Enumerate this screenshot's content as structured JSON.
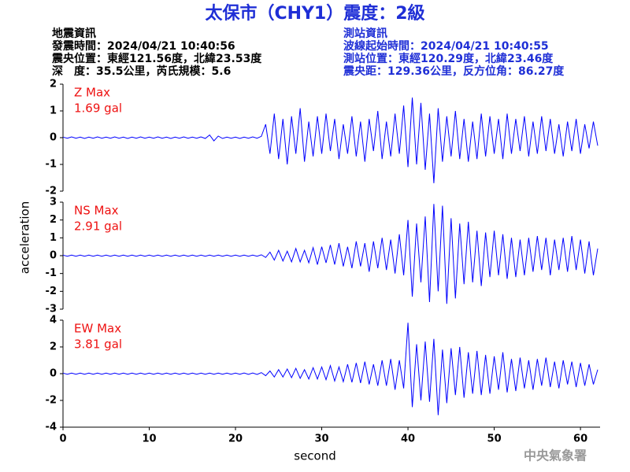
{
  "header": {
    "title": "太保市（CHY1）震度：2級",
    "left": [
      "地震資訊",
      "發震時間：2024/04/21 10:40:56",
      "震央位置：東經121.56度，北緯23.53度",
      "深　度：35.5公里，芮氏規模：5.6"
    ],
    "right": [
      "測站資訊",
      "波線起始時間：2024/04/21 10:40:55",
      "測站位置：東經120.29度，北緯23.46度",
      "震央距：129.36公里，反方位角：86.27度"
    ]
  },
  "ylabel": "acceleration",
  "xlabel": "second",
  "credit": "中央氣象署",
  "chart_data": [
    {
      "type": "line",
      "annotation": [
        "Z Max",
        "1.69 gal"
      ],
      "annotation_color": "#ee1111",
      "xlim": [
        0,
        62
      ],
      "ylim": [
        -2,
        2
      ],
      "yticks": [
        -2,
        -1,
        0,
        1,
        2
      ],
      "x": [
        0,
        0.5,
        1,
        1.5,
        2,
        2.5,
        3,
        3.5,
        4,
        4.5,
        5,
        5.5,
        6,
        6.5,
        7,
        7.5,
        8,
        8.5,
        9,
        9.5,
        10,
        10.5,
        11,
        11.5,
        12,
        12.5,
        13,
        13.5,
        14,
        14.5,
        15,
        15.5,
        16,
        16.5,
        17,
        17.5,
        18,
        18.5,
        19,
        19.5,
        20,
        20.5,
        21,
        21.5,
        22,
        22.5,
        23,
        23.5,
        24,
        24.5,
        25,
        25.5,
        26,
        26.5,
        27,
        27.5,
        28,
        28.5,
        29,
        29.5,
        30,
        30.5,
        31,
        31.5,
        32,
        32.5,
        33,
        33.5,
        34,
        34.5,
        35,
        35.5,
        36,
        36.5,
        37,
        37.5,
        38,
        38.5,
        39,
        39.5,
        40,
        40.5,
        41,
        41.5,
        42,
        42.5,
        43,
        43.5,
        44,
        44.5,
        45,
        45.5,
        46,
        46.5,
        47,
        47.5,
        48,
        48.5,
        49,
        49.5,
        50,
        50.5,
        51,
        51.5,
        52,
        52.5,
        53,
        53.5,
        54,
        54.5,
        55,
        55.5,
        56,
        56.5,
        57,
        57.5,
        58,
        58.5,
        59,
        59.5,
        60,
        60.5,
        61,
        61.5,
        62
      ],
      "series": [
        {
          "color": "#0000ff",
          "values": [
            0.02,
            -0.02,
            0.03,
            -0.02,
            0.02,
            -0.03,
            0.02,
            -0.02,
            0.03,
            -0.02,
            0.02,
            -0.02,
            0.03,
            -0.02,
            0.02,
            -0.03,
            0.02,
            -0.02,
            0.03,
            -0.02,
            0.02,
            -0.02,
            0.03,
            -0.02,
            0.02,
            -0.03,
            0.02,
            -0.02,
            0.03,
            -0.02,
            0.02,
            -0.02,
            0.03,
            -0.03,
            0.1,
            -0.12,
            0.06,
            -0.03,
            0.02,
            -0.02,
            0.02,
            -0.03,
            0.02,
            -0.02,
            0.03,
            -0.02,
            0.05,
            0.5,
            -0.6,
            0.9,
            -0.8,
            0.7,
            -1.0,
            0.8,
            -0.6,
            1.1,
            -0.9,
            0.6,
            -0.7,
            0.8,
            -0.6,
            0.9,
            -0.5,
            0.7,
            -0.8,
            0.5,
            -0.6,
            0.8,
            -0.7,
            0.6,
            -0.9,
            0.7,
            -0.5,
            1.0,
            -0.8,
            0.6,
            -0.7,
            0.9,
            -0.6,
            1.2,
            -1.1,
            1.5,
            -1.0,
            1.3,
            -1.2,
            0.9,
            -1.7,
            1.1,
            -0.9,
            0.8,
            -0.7,
            1.0,
            -0.8,
            0.7,
            -0.9,
            0.6,
            -0.8,
            0.9,
            -0.7,
            0.8,
            -0.6,
            0.7,
            -0.8,
            0.9,
            -0.6,
            0.7,
            -0.5,
            0.8,
            -0.7,
            0.6,
            -0.6,
            0.8,
            -0.5,
            0.7,
            -0.6,
            0.5,
            -0.7,
            0.6,
            -0.5,
            0.7,
            -0.6,
            0.5,
            -0.4,
            0.6,
            -0.3
          ]
        }
      ]
    },
    {
      "type": "line",
      "annotation": [
        "NS Max",
        "2.91 gal"
      ],
      "annotation_color": "#ee1111",
      "xlim": [
        0,
        62
      ],
      "ylim": [
        -3,
        3
      ],
      "yticks": [
        -3,
        -2,
        -1,
        0,
        1,
        2,
        3
      ],
      "x": [
        0,
        0.5,
        1,
        1.5,
        2,
        2.5,
        3,
        3.5,
        4,
        4.5,
        5,
        5.5,
        6,
        6.5,
        7,
        7.5,
        8,
        8.5,
        9,
        9.5,
        10,
        10.5,
        11,
        11.5,
        12,
        12.5,
        13,
        13.5,
        14,
        14.5,
        15,
        15.5,
        16,
        16.5,
        17,
        17.5,
        18,
        18.5,
        19,
        19.5,
        20,
        20.5,
        21,
        21.5,
        22,
        22.5,
        23,
        23.5,
        24,
        24.5,
        25,
        25.5,
        26,
        26.5,
        27,
        27.5,
        28,
        28.5,
        29,
        29.5,
        30,
        30.5,
        31,
        31.5,
        32,
        32.5,
        33,
        33.5,
        34,
        34.5,
        35,
        35.5,
        36,
        36.5,
        37,
        37.5,
        38,
        38.5,
        39,
        39.5,
        40,
        40.5,
        41,
        41.5,
        42,
        42.5,
        43,
        43.5,
        44,
        44.5,
        45,
        45.5,
        46,
        46.5,
        47,
        47.5,
        48,
        48.5,
        49,
        49.5,
        50,
        50.5,
        51,
        51.5,
        52,
        52.5,
        53,
        53.5,
        54,
        54.5,
        55,
        55.5,
        56,
        56.5,
        57,
        57.5,
        58,
        58.5,
        59,
        59.5,
        60,
        60.5,
        61,
        61.5,
        62
      ],
      "series": [
        {
          "color": "#0000ff",
          "values": [
            0.03,
            -0.03,
            0.03,
            -0.03,
            0.03,
            -0.03,
            0.03,
            -0.03,
            0.03,
            -0.03,
            0.03,
            -0.03,
            0.03,
            -0.03,
            0.03,
            -0.03,
            0.03,
            -0.03,
            0.03,
            -0.03,
            0.03,
            -0.03,
            0.03,
            -0.03,
            0.03,
            -0.03,
            0.03,
            -0.03,
            0.03,
            -0.03,
            0.03,
            -0.03,
            0.03,
            -0.03,
            0.03,
            -0.03,
            0.03,
            -0.03,
            0.03,
            -0.03,
            0.03,
            -0.03,
            0.03,
            -0.03,
            0.03,
            -0.03,
            0.05,
            -0.1,
            0.2,
            -0.25,
            0.3,
            -0.3,
            0.25,
            -0.35,
            0.4,
            -0.35,
            0.3,
            -0.4,
            0.45,
            -0.5,
            0.5,
            -0.4,
            0.6,
            -0.5,
            0.7,
            -0.6,
            0.5,
            -0.7,
            0.8,
            -0.6,
            0.7,
            -0.9,
            0.8,
            -0.7,
            1.0,
            -0.8,
            0.9,
            -1.0,
            1.2,
            -1.1,
            2.0,
            -2.3,
            1.8,
            -1.5,
            2.2,
            -2.6,
            2.9,
            -2.0,
            2.8,
            -2.7,
            2.1,
            -2.4,
            1.8,
            -1.6,
            1.9,
            -1.5,
            1.4,
            -1.7,
            1.3,
            -1.2,
            1.4,
            -1.1,
            1.2,
            -1.3,
            1.0,
            -1.2,
            0.9,
            -1.1,
            1.0,
            -0.9,
            1.1,
            -0.8,
            1.0,
            -1.1,
            0.9,
            -0.8,
            1.0,
            -0.9,
            1.1,
            -0.8,
            0.9,
            -1.0,
            0.8,
            -1.1,
            0.4
          ]
        }
      ]
    },
    {
      "type": "line",
      "annotation": [
        "EW Max",
        "3.81 gal"
      ],
      "annotation_color": "#ee1111",
      "xlim": [
        0,
        62
      ],
      "ylim": [
        -4,
        4
      ],
      "yticks": [
        -4,
        -2,
        0,
        2,
        4
      ],
      "xticks": [
        0,
        10,
        20,
        30,
        40,
        50,
        60
      ],
      "x": [
        0,
        0.5,
        1,
        1.5,
        2,
        2.5,
        3,
        3.5,
        4,
        4.5,
        5,
        5.5,
        6,
        6.5,
        7,
        7.5,
        8,
        8.5,
        9,
        9.5,
        10,
        10.5,
        11,
        11.5,
        12,
        12.5,
        13,
        13.5,
        14,
        14.5,
        15,
        15.5,
        16,
        16.5,
        17,
        17.5,
        18,
        18.5,
        19,
        19.5,
        20,
        20.5,
        21,
        21.5,
        22,
        22.5,
        23,
        23.5,
        24,
        24.5,
        25,
        25.5,
        26,
        26.5,
        27,
        27.5,
        28,
        28.5,
        29,
        29.5,
        30,
        30.5,
        31,
        31.5,
        32,
        32.5,
        33,
        33.5,
        34,
        34.5,
        35,
        35.5,
        36,
        36.5,
        37,
        37.5,
        38,
        38.5,
        39,
        39.5,
        40,
        40.5,
        41,
        41.5,
        42,
        42.5,
        43,
        43.5,
        44,
        44.5,
        45,
        45.5,
        46,
        46.5,
        47,
        47.5,
        48,
        48.5,
        49,
        49.5,
        50,
        50.5,
        51,
        51.5,
        52,
        52.5,
        53,
        53.5,
        54,
        54.5,
        55,
        55.5,
        56,
        56.5,
        57,
        57.5,
        58,
        58.5,
        59,
        59.5,
        60,
        60.5,
        61,
        61.5,
        62
      ],
      "series": [
        {
          "color": "#0000ff",
          "values": [
            0.04,
            -0.04,
            0.04,
            -0.04,
            0.04,
            -0.04,
            0.04,
            -0.04,
            0.04,
            -0.04,
            0.04,
            -0.04,
            0.04,
            -0.04,
            0.04,
            -0.04,
            0.04,
            -0.04,
            0.04,
            -0.04,
            0.04,
            -0.04,
            0.04,
            -0.04,
            0.04,
            -0.04,
            0.04,
            -0.04,
            0.04,
            -0.04,
            0.04,
            -0.04,
            0.04,
            -0.04,
            0.04,
            -0.04,
            0.04,
            -0.04,
            0.04,
            -0.04,
            0.04,
            -0.04,
            0.05,
            -0.05,
            0.05,
            -0.06,
            0.08,
            -0.15,
            0.2,
            -0.25,
            0.3,
            -0.25,
            0.35,
            -0.3,
            0.4,
            -0.35,
            0.3,
            -0.4,
            0.45,
            -0.4,
            0.5,
            -0.45,
            0.6,
            -0.55,
            0.5,
            -0.6,
            0.7,
            -0.65,
            0.8,
            -0.7,
            0.9,
            -0.8,
            0.7,
            -0.9,
            1.0,
            -0.9,
            1.1,
            -1.2,
            1.0,
            -1.1,
            3.81,
            -2.5,
            2.2,
            -2.0,
            2.4,
            -2.1,
            2.6,
            -3.1,
            1.8,
            -2.2,
            1.9,
            -1.6,
            2.0,
            -1.8,
            1.6,
            -1.5,
            1.7,
            -1.6,
            1.4,
            -1.5,
            1.3,
            -1.2,
            1.6,
            -1.4,
            1.1,
            -1.3,
            1.2,
            -1.1,
            1.0,
            -1.2,
            1.1,
            -0.9,
            1.2,
            -1.0,
            0.9,
            -1.1,
            1.0,
            -0.8,
            0.9,
            -1.0,
            0.8,
            -0.9,
            0.7,
            -0.8,
            0.3
          ]
        }
      ]
    }
  ]
}
